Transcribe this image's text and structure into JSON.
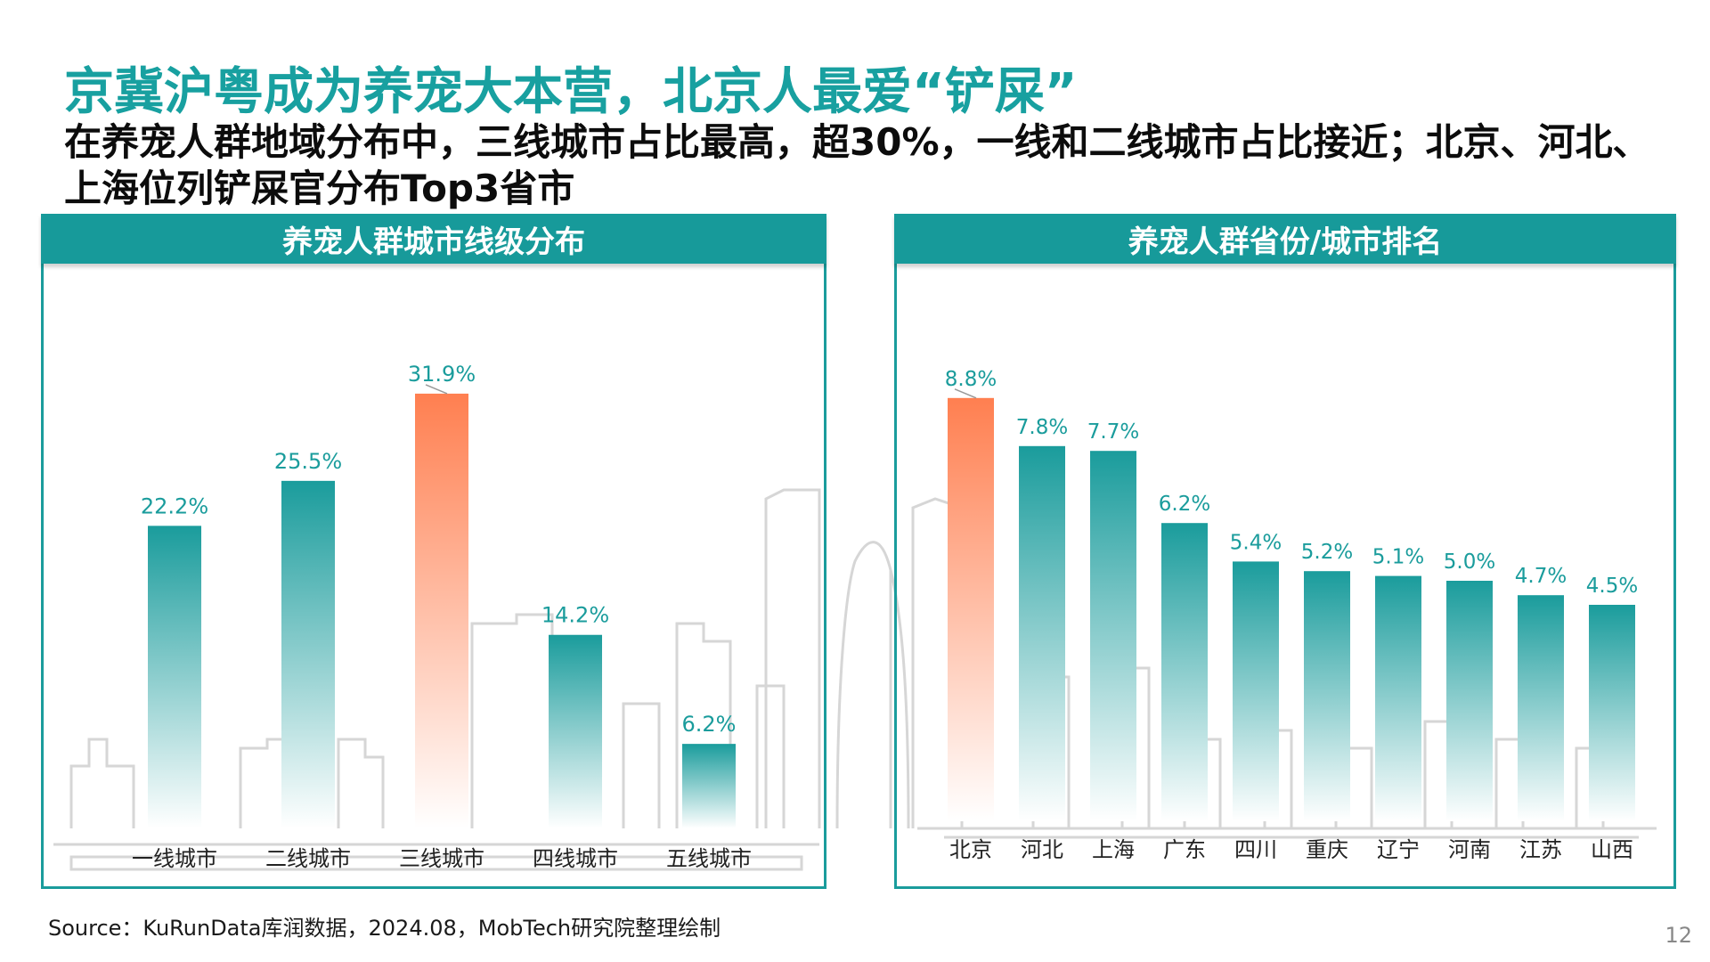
{
  "title": "京冀沪粤成为养宠大本营，北京人最爱“铲屎”",
  "subtitle": "在养宠人群地域分布中，三线城市占比最高，超30%，一线和二线城市占比接近；北京、河北、上海位列铲屎官分布Top3省市",
  "left_panel": {
    "header": "养宠人群城市线级分布"
  },
  "right_panel": {
    "header": "养宠人群省份/城市排名"
  },
  "source": "Source：KuRunData库润数据，2024.08，MobTech研究院整理绘制",
  "page_number": "12",
  "colors": {
    "teal": "#1a9c9c",
    "orange": "#ff7f50",
    "label": "#1a9c9c"
  },
  "chart_data": [
    {
      "type": "bar",
      "title": "养宠人群城市线级分布",
      "categories": [
        "一线城市",
        "二线城市",
        "三线城市",
        "四线城市",
        "五线城市"
      ],
      "values": [
        22.2,
        25.5,
        31.9,
        14.2,
        6.2
      ],
      "value_labels": [
        "22.2%",
        "25.5%",
        "31.9%",
        "14.2%",
        "6.2%"
      ],
      "highlight": "三线城市",
      "ylim": [
        0,
        35
      ],
      "unit": "%"
    },
    {
      "type": "bar",
      "title": "养宠人群省份/城市排名",
      "categories": [
        "北京",
        "河北",
        "上海",
        "广东",
        "四川",
        "重庆",
        "辽宁",
        "河南",
        "江苏",
        "山西"
      ],
      "values": [
        8.8,
        7.8,
        7.7,
        6.2,
        5.4,
        5.2,
        5.1,
        5.0,
        4.7,
        4.5
      ],
      "value_labels": [
        "8.8%",
        "7.8%",
        "7.7%",
        "6.2%",
        "5.4%",
        "5.2%",
        "5.1%",
        "5.0%",
        "4.7%",
        "4.5%"
      ],
      "highlight": "北京",
      "ylim": [
        0,
        10
      ],
      "unit": "%"
    }
  ]
}
